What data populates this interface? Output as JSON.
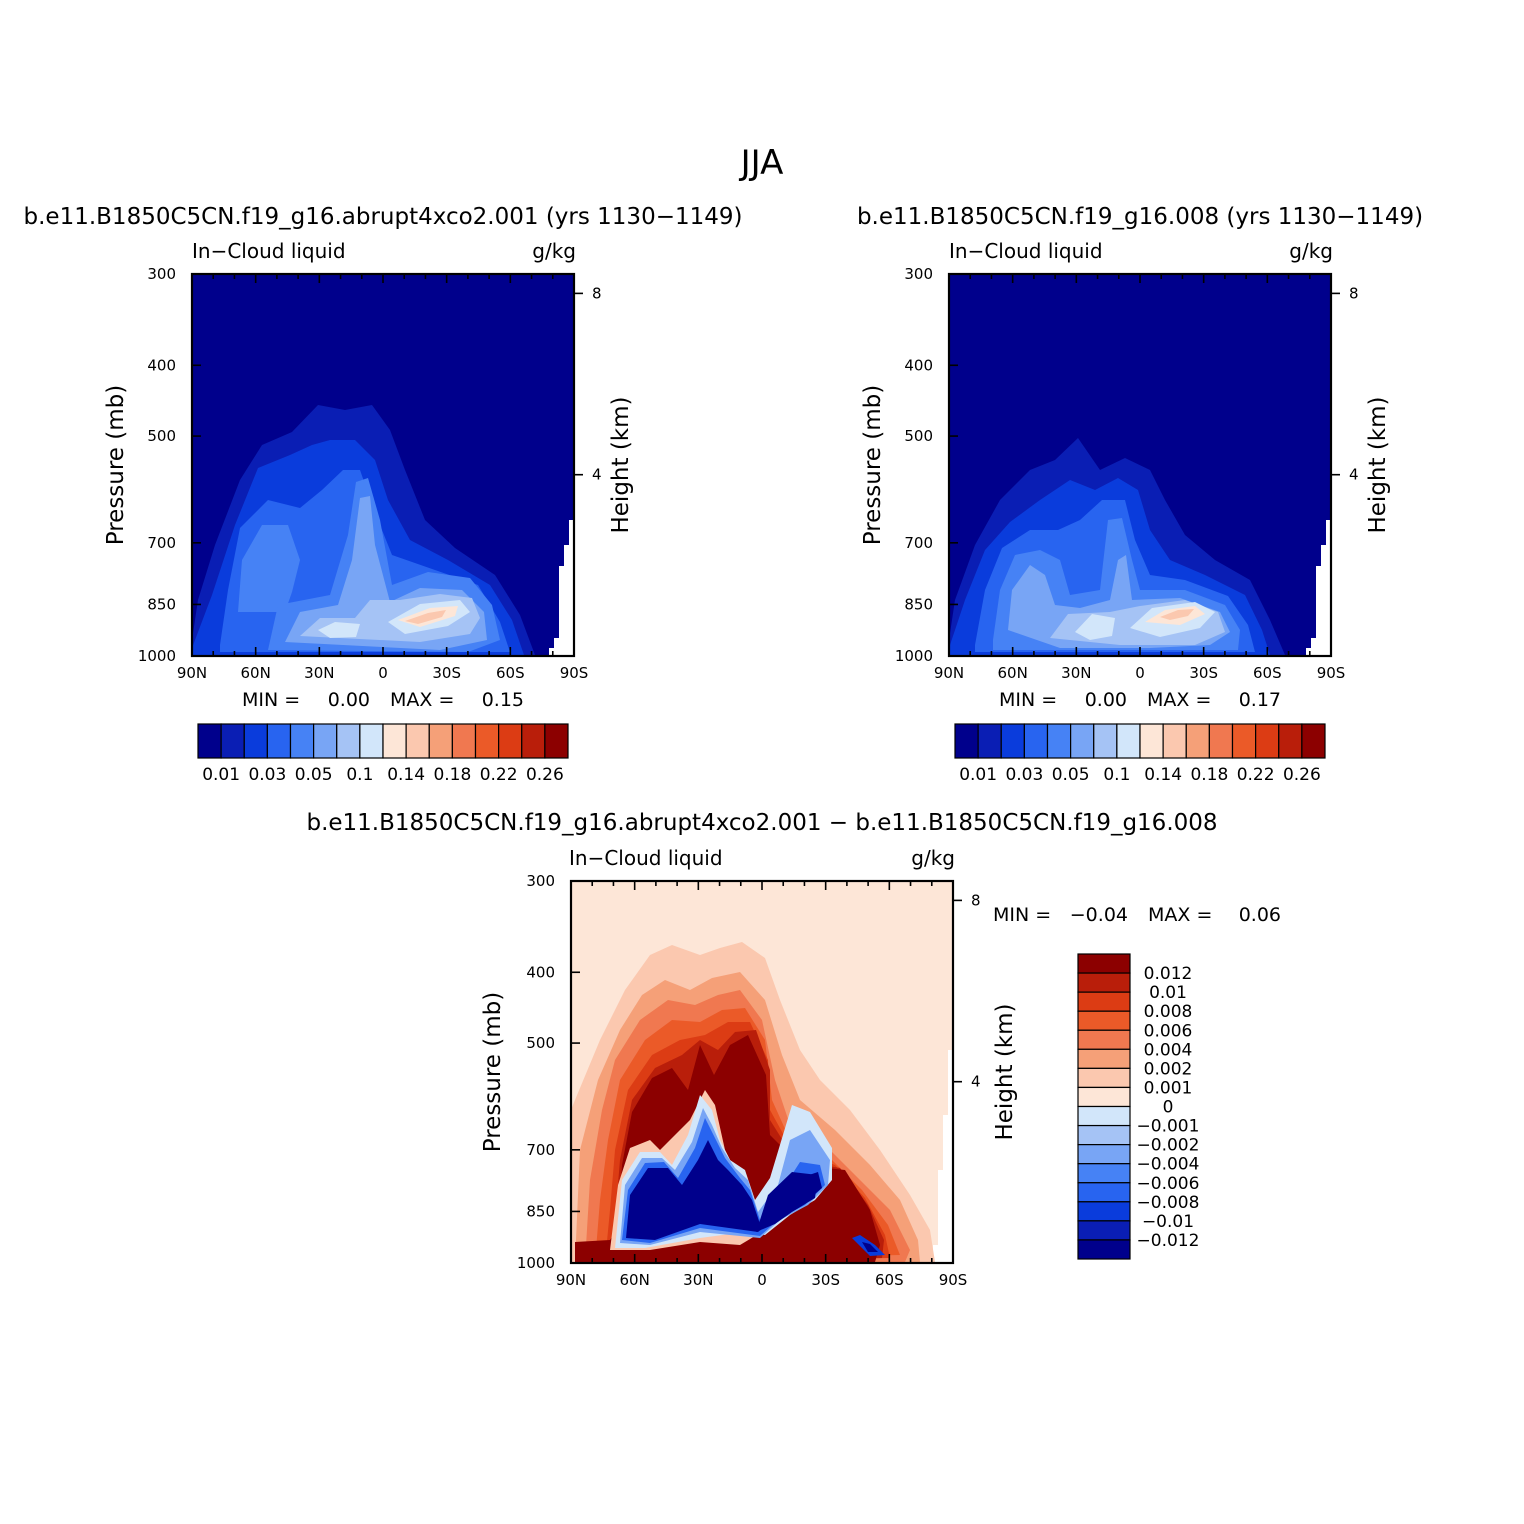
{
  "figure_title": "JJA",
  "chart_data": [
    {
      "type": "heatmap",
      "id": "panel-abrupt4xco2",
      "title": "b.e11.B1850C5CN.f19_g16.abrupt4xco2.001 (yrs 1130−1149)",
      "left_label": "In−Cloud liquid",
      "units": "g/kg",
      "xlabel": "",
      "ylabel": "Pressure (mb)",
      "ylabel_right": "Height (km)",
      "x_ticklabels": [
        "90N",
        "60N",
        "30N",
        "0",
        "30S",
        "60S",
        "90S"
      ],
      "y_ticklabels": [
        "300",
        "400",
        "500",
        "700",
        "850",
        "1000"
      ],
      "y_right_ticklabels": [
        "8",
        "4"
      ],
      "ylim": [
        1000,
        300
      ],
      "scale": "log-pressure",
      "min_label": "MIN =",
      "min_value": "0.00",
      "max_label": "MAX =",
      "max_value": "0.15",
      "colorbar": {
        "orientation": "horizontal",
        "ticklabels": [
          "0.01",
          "0.03",
          "0.05",
          "0.1",
          "0.14",
          "0.18",
          "0.22",
          "0.26"
        ]
      }
    },
    {
      "type": "heatmap",
      "id": "panel-control",
      "title": "b.e11.B1850C5CN.f19_g16.008 (yrs 1130−1149)",
      "left_label": "In−Cloud liquid",
      "units": "g/kg",
      "xlabel": "",
      "ylabel": "Pressure (mb)",
      "ylabel_right": "Height (km)",
      "x_ticklabels": [
        "90N",
        "60N",
        "30N",
        "0",
        "30S",
        "60S",
        "90S"
      ],
      "y_ticklabels": [
        "300",
        "400",
        "500",
        "700",
        "850",
        "1000"
      ],
      "y_right_ticklabels": [
        "8",
        "4"
      ],
      "ylim": [
        1000,
        300
      ],
      "scale": "log-pressure",
      "min_label": "MIN =",
      "min_value": "0.00",
      "max_label": "MAX =",
      "max_value": "0.17",
      "colorbar": {
        "orientation": "horizontal",
        "ticklabels": [
          "0.01",
          "0.03",
          "0.05",
          "0.1",
          "0.14",
          "0.18",
          "0.22",
          "0.26"
        ]
      }
    },
    {
      "type": "heatmap",
      "id": "panel-difference",
      "title": "b.e11.B1850C5CN.f19_g16.abrupt4xco2.001 − b.e11.B1850C5CN.f19_g16.008",
      "left_label": "In−Cloud liquid",
      "units": "g/kg",
      "xlabel": "",
      "ylabel": "Pressure (mb)",
      "ylabel_right": "Height (km)",
      "x_ticklabels": [
        "90N",
        "60N",
        "30N",
        "0",
        "30S",
        "60S",
        "90S"
      ],
      "y_ticklabels": [
        "300",
        "400",
        "500",
        "700",
        "850",
        "1000"
      ],
      "y_right_ticklabels": [
        "8",
        "4"
      ],
      "ylim": [
        1000,
        300
      ],
      "scale": "log-pressure",
      "min_label": "MIN =",
      "min_value": "−0.04",
      "max_label": "MAX =",
      "max_value": "0.06",
      "colorbar": {
        "orientation": "vertical",
        "ticklabels": [
          "0.012",
          "0.01",
          "0.008",
          "0.006",
          "0.004",
          "0.002",
          "0.001",
          "0",
          "−0.001",
          "−0.002",
          "−0.004",
          "−0.006",
          "−0.008",
          "−0.01",
          "−0.012"
        ]
      }
    }
  ],
  "colors": {
    "seq": [
      "#00008c",
      "#0a1eb4",
      "#0a3cdc",
      "#2864f0",
      "#4682f5",
      "#78a5f5",
      "#a5c3f5",
      "#d2e6fa",
      "#fde6d7",
      "#fbc8af",
      "#f5a078",
      "#f07850",
      "#eb5a28",
      "#dc3c14",
      "#b91e0a",
      "#8c0000"
    ],
    "diff": [
      "#8c0000",
      "#b91e0a",
      "#dc3c14",
      "#eb5a28",
      "#f07850",
      "#f5a078",
      "#fbc8af",
      "#fde6d7",
      "#d2e6fa",
      "#a5c3f5",
      "#78a5f5",
      "#4682f5",
      "#2864f0",
      "#0a3cdc",
      "#0a1eb4",
      "#00008c"
    ],
    "axes": "#000000"
  }
}
